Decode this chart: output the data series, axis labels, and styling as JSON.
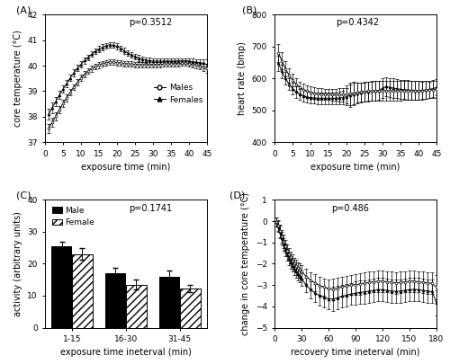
{
  "panel_A": {
    "title_label": "(A)",
    "pvalue": "p=0.3512",
    "xlabel": "exposure time (min)",
    "ylabel": "core temperature (°C)",
    "xlim": [
      0,
      45
    ],
    "ylim": [
      37,
      42
    ],
    "xticks": [
      0,
      5,
      10,
      15,
      20,
      25,
      30,
      35,
      40,
      45
    ],
    "yticks": [
      37,
      38,
      39,
      40,
      41,
      42
    ],
    "males_x": [
      1,
      2,
      3,
      4,
      5,
      6,
      7,
      8,
      9,
      10,
      11,
      12,
      13,
      14,
      15,
      16,
      17,
      18,
      19,
      20,
      21,
      22,
      23,
      24,
      25,
      26,
      27,
      28,
      29,
      30,
      31,
      32,
      33,
      34,
      35,
      36,
      37,
      38,
      39,
      40,
      41,
      42,
      43,
      44,
      45
    ],
    "males_y": [
      37.55,
      37.78,
      38.02,
      38.28,
      38.52,
      38.74,
      38.96,
      39.16,
      39.35,
      39.52,
      39.66,
      39.78,
      39.88,
      39.96,
      40.02,
      40.08,
      40.12,
      40.14,
      40.13,
      40.12,
      40.1,
      40.08,
      40.07,
      40.06,
      40.05,
      40.05,
      40.04,
      40.04,
      40.04,
      40.04,
      40.05,
      40.05,
      40.06,
      40.06,
      40.07,
      40.08,
      40.09,
      40.1,
      40.1,
      40.08,
      40.05,
      40.02,
      39.98,
      39.94,
      39.9
    ],
    "males_sem": [
      0.18,
      0.18,
      0.16,
      0.15,
      0.14,
      0.13,
      0.13,
      0.12,
      0.12,
      0.12,
      0.12,
      0.11,
      0.11,
      0.11,
      0.11,
      0.11,
      0.11,
      0.11,
      0.11,
      0.11,
      0.11,
      0.11,
      0.11,
      0.11,
      0.11,
      0.11,
      0.11,
      0.11,
      0.11,
      0.11,
      0.11,
      0.11,
      0.11,
      0.11,
      0.11,
      0.11,
      0.11,
      0.11,
      0.11,
      0.11,
      0.11,
      0.12,
      0.13,
      0.15,
      0.18
    ],
    "females_x": [
      1,
      2,
      3,
      4,
      5,
      6,
      7,
      8,
      9,
      10,
      11,
      12,
      13,
      14,
      15,
      16,
      17,
      18,
      19,
      20,
      21,
      22,
      23,
      24,
      25,
      26,
      27,
      28,
      29,
      30,
      31,
      32,
      33,
      34,
      35,
      36,
      37,
      38,
      39,
      40,
      41,
      42,
      43,
      44,
      45
    ],
    "females_y": [
      38.1,
      38.35,
      38.6,
      38.85,
      39.08,
      39.3,
      39.52,
      39.72,
      39.9,
      40.05,
      40.2,
      40.33,
      40.45,
      40.56,
      40.65,
      40.72,
      40.78,
      40.82,
      40.8,
      40.76,
      40.68,
      40.58,
      40.5,
      40.42,
      40.36,
      40.3,
      40.26,
      40.22,
      40.2,
      40.18,
      40.18,
      40.18,
      40.18,
      40.18,
      40.18,
      40.18,
      40.18,
      40.18,
      40.18,
      40.18,
      40.16,
      40.14,
      40.12,
      40.1,
      40.05
    ],
    "females_sem": [
      0.2,
      0.2,
      0.18,
      0.16,
      0.15,
      0.14,
      0.13,
      0.13,
      0.12,
      0.12,
      0.11,
      0.11,
      0.11,
      0.11,
      0.11,
      0.11,
      0.11,
      0.11,
      0.11,
      0.11,
      0.11,
      0.11,
      0.11,
      0.11,
      0.11,
      0.11,
      0.11,
      0.11,
      0.11,
      0.11,
      0.11,
      0.11,
      0.11,
      0.11,
      0.11,
      0.11,
      0.11,
      0.11,
      0.11,
      0.11,
      0.11,
      0.12,
      0.13,
      0.15,
      0.2
    ]
  },
  "panel_B": {
    "title_label": "(B)",
    "pvalue": "p=0.4342",
    "xlabel": "exposure time (min)",
    "ylabel": "heart rate (bmp)",
    "xlim": [
      0,
      45
    ],
    "ylim": [
      400,
      800
    ],
    "xticks": [
      0,
      5,
      10,
      15,
      20,
      25,
      30,
      35,
      40,
      45
    ],
    "yticks": [
      400,
      500,
      600,
      700,
      800
    ],
    "males_x": [
      1,
      2,
      3,
      4,
      5,
      6,
      7,
      8,
      9,
      10,
      11,
      12,
      13,
      14,
      15,
      16,
      17,
      18,
      19,
      20,
      21,
      22,
      23,
      24,
      25,
      26,
      27,
      28,
      29,
      30,
      31,
      32,
      33,
      34,
      35,
      36,
      37,
      38,
      39,
      40,
      41,
      42,
      43,
      44,
      45
    ],
    "males_y": [
      680,
      655,
      630,
      610,
      595,
      582,
      572,
      565,
      560,
      557,
      554,
      552,
      551,
      550,
      550,
      549,
      549,
      549,
      549,
      550,
      552,
      554,
      556,
      558,
      559,
      560,
      561,
      561,
      561,
      561,
      561,
      561,
      561,
      561,
      561,
      562,
      562,
      562,
      562,
      562,
      562,
      563,
      564,
      565,
      566
    ],
    "males_sem": [
      28,
      26,
      24,
      22,
      20,
      20,
      18,
      18,
      18,
      18,
      18,
      18,
      18,
      18,
      18,
      18,
      18,
      20,
      22,
      28,
      35,
      35,
      32,
      30,
      30,
      30,
      30,
      30,
      30,
      30,
      30,
      30,
      30,
      30,
      30,
      30,
      30,
      30,
      30,
      30,
      28,
      28,
      26,
      26,
      26
    ],
    "females_x": [
      1,
      2,
      3,
      4,
      5,
      6,
      7,
      8,
      9,
      10,
      11,
      12,
      13,
      14,
      15,
      16,
      17,
      18,
      19,
      20,
      21,
      22,
      23,
      24,
      25,
      26,
      27,
      28,
      29,
      30,
      31,
      32,
      33,
      34,
      35,
      36,
      37,
      38,
      39,
      40,
      41,
      42,
      43,
      44,
      45
    ],
    "females_y": [
      648,
      622,
      600,
      582,
      568,
      558,
      550,
      545,
      542,
      540,
      539,
      538,
      538,
      538,
      538,
      538,
      538,
      539,
      540,
      543,
      547,
      551,
      554,
      556,
      558,
      559,
      560,
      561,
      562,
      570,
      575,
      572,
      570,
      568,
      566,
      565,
      564,
      563,
      562,
      562,
      563,
      564,
      566,
      568,
      572
    ],
    "females_sem": [
      24,
      22,
      20,
      18,
      18,
      18,
      18,
      18,
      18,
      18,
      18,
      18,
      18,
      18,
      18,
      18,
      18,
      20,
      22,
      28,
      35,
      35,
      32,
      30,
      30,
      30,
      30,
      30,
      30,
      30,
      30,
      30,
      30,
      30,
      30,
      30,
      30,
      30,
      30,
      30,
      28,
      28,
      26,
      26,
      26
    ]
  },
  "panel_C": {
    "title_label": "(C)",
    "pvalue": "p=0.1741",
    "xlabel": "exposure time ineterval (min)",
    "ylabel": "activity (arbitrary units)",
    "ylim": [
      0,
      40
    ],
    "yticks": [
      0,
      10,
      20,
      30,
      40
    ],
    "categories": [
      "1-15",
      "16-30",
      "31-45"
    ],
    "male_vals": [
      25.5,
      17.0,
      16.0
    ],
    "male_sems": [
      1.4,
      1.8,
      1.8
    ],
    "female_vals": [
      23.0,
      13.5,
      12.3
    ],
    "female_sems": [
      1.8,
      1.5,
      1.2
    ]
  },
  "panel_D": {
    "title_label": "(D)",
    "pvalue": "p=0.486",
    "xlabel": "recovery time ineterval (min)",
    "ylabel": "change in core temperature (°C)",
    "xlim": [
      0,
      180
    ],
    "ylim": [
      -5,
      1
    ],
    "xticks": [
      0,
      30,
      60,
      90,
      120,
      150,
      180
    ],
    "yticks": [
      -5,
      -4,
      -3,
      -2,
      -1,
      0,
      1
    ],
    "males_x": [
      2,
      4,
      6,
      8,
      10,
      12,
      14,
      16,
      18,
      20,
      22,
      24,
      26,
      28,
      30,
      35,
      40,
      45,
      50,
      55,
      60,
      65,
      70,
      75,
      80,
      85,
      90,
      95,
      100,
      105,
      110,
      115,
      120,
      125,
      130,
      135,
      140,
      145,
      150,
      155,
      160,
      165,
      170,
      175,
      180
    ],
    "males_y": [
      -0.05,
      -0.2,
      -0.45,
      -0.7,
      -0.95,
      -1.18,
      -1.38,
      -1.55,
      -1.7,
      -1.85,
      -2.0,
      -2.1,
      -2.2,
      -2.28,
      -2.38,
      -2.6,
      -2.78,
      -2.9,
      -3.02,
      -3.1,
      -3.18,
      -3.2,
      -3.15,
      -3.08,
      -3.05,
      -3.0,
      -2.98,
      -2.95,
      -2.92,
      -2.88,
      -2.85,
      -2.82,
      -2.82,
      -2.85,
      -2.88,
      -2.9,
      -2.88,
      -2.85,
      -2.82,
      -2.82,
      -2.85,
      -2.88,
      -2.9,
      -2.92,
      -3.1
    ],
    "males_sem": [
      0.2,
      0.25,
      0.3,
      0.3,
      0.3,
      0.28,
      0.28,
      0.28,
      0.28,
      0.28,
      0.28,
      0.28,
      0.28,
      0.28,
      0.3,
      0.35,
      0.38,
      0.4,
      0.42,
      0.42,
      0.45,
      0.5,
      0.5,
      0.48,
      0.48,
      0.48,
      0.5,
      0.5,
      0.5,
      0.5,
      0.5,
      0.5,
      0.5,
      0.5,
      0.5,
      0.5,
      0.5,
      0.5,
      0.5,
      0.5,
      0.5,
      0.5,
      0.5,
      0.5,
      0.55
    ],
    "females_x": [
      2,
      4,
      6,
      8,
      10,
      12,
      14,
      16,
      18,
      20,
      22,
      24,
      26,
      28,
      30,
      35,
      40,
      45,
      50,
      55,
      60,
      65,
      70,
      75,
      80,
      85,
      90,
      95,
      100,
      105,
      110,
      115,
      120,
      125,
      130,
      135,
      140,
      145,
      150,
      155,
      160,
      165,
      170,
      175,
      180
    ],
    "females_y": [
      -0.05,
      -0.25,
      -0.52,
      -0.8,
      -1.08,
      -1.35,
      -1.58,
      -1.78,
      -1.95,
      -2.1,
      -2.25,
      -2.38,
      -2.5,
      -2.6,
      -2.72,
      -3.0,
      -3.22,
      -3.38,
      -3.5,
      -3.58,
      -3.65,
      -3.65,
      -3.6,
      -3.52,
      -3.48,
      -3.42,
      -3.38,
      -3.35,
      -3.32,
      -3.28,
      -3.25,
      -3.22,
      -3.22,
      -3.25,
      -3.28,
      -3.3,
      -3.28,
      -3.25,
      -3.22,
      -3.2,
      -3.22,
      -3.25,
      -3.28,
      -3.3,
      -3.85
    ],
    "females_sem": [
      0.2,
      0.25,
      0.3,
      0.3,
      0.3,
      0.28,
      0.28,
      0.28,
      0.28,
      0.28,
      0.28,
      0.28,
      0.28,
      0.28,
      0.3,
      0.35,
      0.4,
      0.42,
      0.45,
      0.48,
      0.5,
      0.55,
      0.55,
      0.52,
      0.52,
      0.52,
      0.55,
      0.55,
      0.55,
      0.55,
      0.55,
      0.55,
      0.55,
      0.55,
      0.55,
      0.55,
      0.55,
      0.55,
      0.55,
      0.55,
      0.55,
      0.55,
      0.55,
      0.55,
      0.6
    ]
  },
  "fontsize": 7,
  "tick_fontsize": 6.5
}
